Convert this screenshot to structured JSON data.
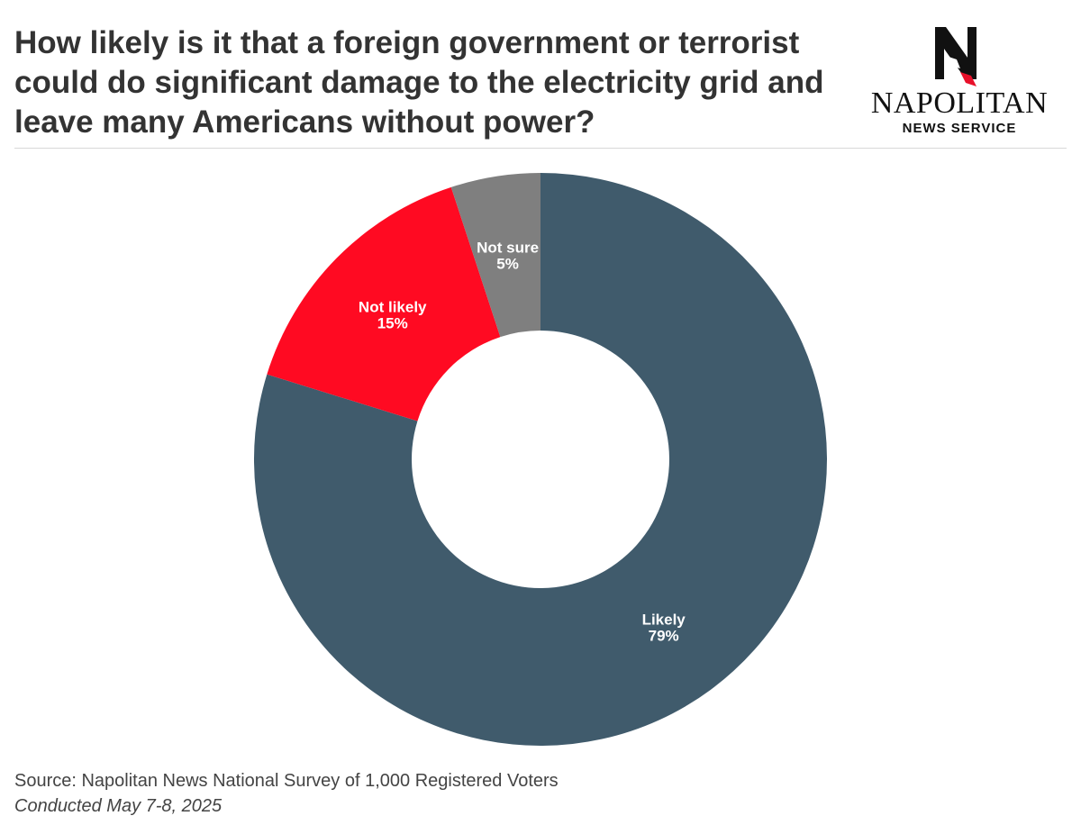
{
  "header": {
    "title": "How likely is it that a foreign government or terrorist could do significant damage to the electricity grid and leave many Americans without power?"
  },
  "logo": {
    "name": "NAPOLITAN",
    "sub": "NEWS SERVICE"
  },
  "footer": {
    "source": "Source: Napolitan News National Survey of 1,000 Registered Voters",
    "conducted": "Conducted May 7-8, 2025"
  },
  "chart_data": {
    "type": "pie",
    "subtype": "donut",
    "title": "How likely is it that a foreign government or terrorist could do significant damage to the electricity grid and leave many Americans without power?",
    "categories": [
      "Likely",
      "Not likely",
      "Not sure"
    ],
    "values": [
      79,
      15,
      5
    ],
    "value_labels": [
      "79%",
      "15%",
      "5%"
    ],
    "colors": [
      "#405B6C",
      "#FF0A22",
      "#7F7F7F"
    ],
    "start": "12 o'clock, clockwise",
    "legend": "none"
  }
}
